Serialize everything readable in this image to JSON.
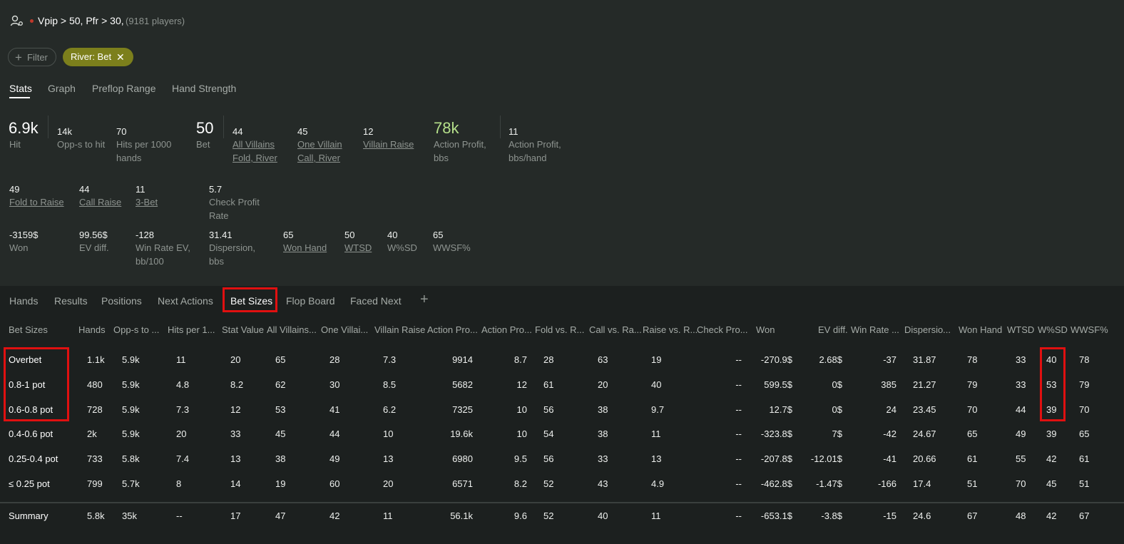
{
  "header": {
    "filter_title": "Vpip > 50, Pfr > 30,",
    "player_count": "(9181 players)"
  },
  "filters": {
    "add_label": "Filter",
    "active_chip": "River: Bet"
  },
  "stats_tabs": [
    "Stats",
    "Graph",
    "Preflop Range",
    "Hand Strength"
  ],
  "stats_row1": [
    {
      "value": "6.9k",
      "label": "Hit"
    },
    {
      "value": "14k",
      "label": "Opp-s to hit"
    },
    {
      "value": "70",
      "label1": "Hits per 1000",
      "label2": "hands"
    },
    {
      "value": "50",
      "label": "Bet"
    },
    {
      "value": "44",
      "label1": "All Villains",
      "label2": "Fold, River"
    },
    {
      "value": "45",
      "label1": "One Villain",
      "label2": "Call, River"
    },
    {
      "value": "12",
      "label": "Villain Raise"
    },
    {
      "value": "78k",
      "label1": "Action Profit,",
      "label2": "bbs"
    },
    {
      "value": "11",
      "label1": "Action Profit,",
      "label2": "bbs/hand"
    }
  ],
  "stats_row2": [
    {
      "value": "49",
      "label": "Fold to Raise"
    },
    {
      "value": "44",
      "label": "Call Raise"
    },
    {
      "value": "11",
      "label": "3-Bet"
    },
    {
      "value": "5.7",
      "label1": "Check Profit",
      "label2": "Rate"
    }
  ],
  "stats_row3": [
    {
      "value": "-3159$",
      "label": "Won"
    },
    {
      "value": "99.56$",
      "label": "EV diff."
    },
    {
      "value": "-128",
      "label1": "Win Rate EV,",
      "label2": "bb/100"
    },
    {
      "value": "31.41",
      "label1": "Dispersion,",
      "label2": "bbs"
    },
    {
      "value": "65",
      "label": "Won Hand"
    },
    {
      "value": "50",
      "label": "WTSD"
    },
    {
      "value": "40",
      "label": "W%SD"
    },
    {
      "value": "65",
      "label": "WWSF%"
    }
  ],
  "bottom_tabs": [
    "Hands",
    "Results",
    "Positions",
    "Next Actions",
    "Bet Sizes",
    "Flop Board",
    "Faced Next"
  ],
  "add_tab": "+",
  "columns": [
    "Bet Sizes",
    "Hands",
    "Opp-s to ...",
    "Hits per 1...",
    "Stat Value",
    "All Villains...",
    "One Villai...",
    "Villain Raise",
    "Action Pro...",
    "Action Pro...",
    "Fold vs. R...",
    "Call vs. Ra...",
    "Raise vs. R...",
    "Check Pro...",
    "Won",
    "EV diff.",
    "Win Rate ...",
    "Dispersio...",
    "Won Hand",
    "WTSD",
    "W%SD",
    "WWSF%"
  ],
  "rows": [
    [
      "Overbet",
      "1.1k",
      "5.9k",
      "11",
      "20",
      "65",
      "28",
      "7.3",
      "9914",
      "8.7",
      "28",
      "63",
      "19",
      "--",
      "-270.9$",
      "2.68$",
      "-37",
      "31.87",
      "78",
      "33",
      "40",
      "78"
    ],
    [
      "0.8-1 pot",
      "480",
      "5.9k",
      "4.8",
      "8.2",
      "62",
      "30",
      "8.5",
      "5682",
      "12",
      "61",
      "20",
      "40",
      "--",
      "599.5$",
      "0$",
      "385",
      "21.27",
      "79",
      "33",
      "53",
      "79"
    ],
    [
      "0.6-0.8 pot",
      "728",
      "5.9k",
      "7.3",
      "12",
      "53",
      "41",
      "6.2",
      "7325",
      "10",
      "56",
      "38",
      "9.7",
      "--",
      "12.7$",
      "0$",
      "24",
      "23.45",
      "70",
      "44",
      "39",
      "70"
    ],
    [
      "0.4-0.6 pot",
      "2k",
      "5.9k",
      "20",
      "33",
      "45",
      "44",
      "10",
      "19.6k",
      "10",
      "54",
      "38",
      "11",
      "--",
      "-323.8$",
      "7$",
      "-42",
      "24.67",
      "65",
      "49",
      "39",
      "65"
    ],
    [
      "0.25-0.4 pot",
      "733",
      "5.8k",
      "7.4",
      "13",
      "38",
      "49",
      "13",
      "6980",
      "9.5",
      "56",
      "33",
      "13",
      "--",
      "-207.8$",
      "-12.01$",
      "-41",
      "20.66",
      "61",
      "55",
      "42",
      "61"
    ],
    [
      "≤ 0.25 pot",
      "799",
      "5.7k",
      "8",
      "14",
      "19",
      "60",
      "20",
      "6571",
      "8.2",
      "52",
      "43",
      "4.9",
      "--",
      "-462.8$",
      "-1.47$",
      "-166",
      "17.4",
      "51",
      "70",
      "45",
      "51"
    ]
  ],
  "summary": [
    "Summary",
    "5.8k",
    "35k",
    "--",
    "17",
    "47",
    "42",
    "11",
    "56.1k",
    "9.6",
    "52",
    "40",
    "11",
    "--",
    "-653.1$",
    "-3.8$",
    "-15",
    "24.6",
    "67",
    "48",
    "42",
    "67"
  ],
  "colors": {
    "background": "#252a28",
    "table_bg": "#1c201f",
    "positive": "#b5e08a",
    "negative": "#e88a7a",
    "chip": "#7c7f1c",
    "highlight_box": "#e01010"
  },
  "icons": {
    "player_settings": "user-gear-icon",
    "close_chip": "close-icon",
    "plus": "plus-icon"
  }
}
